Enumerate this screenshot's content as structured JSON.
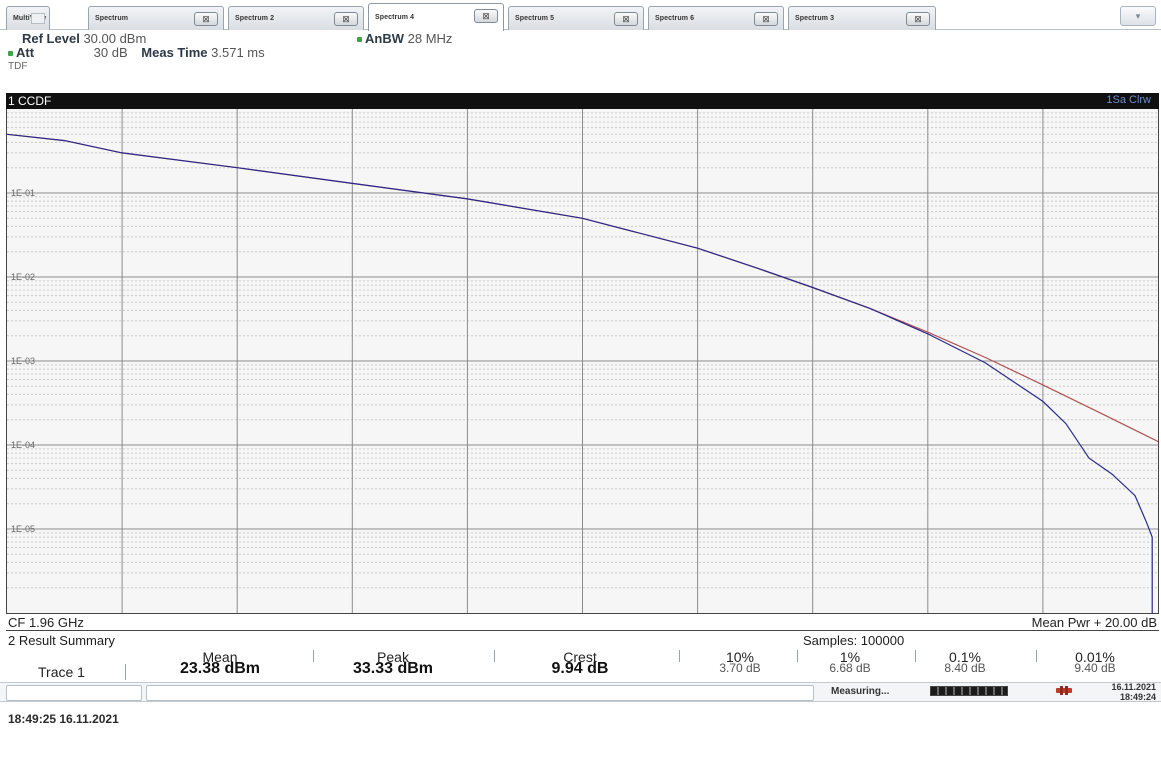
{
  "tabs": [
    {
      "label": "MultiView",
      "has_close": false,
      "active": false
    },
    {
      "label": "Spectrum",
      "has_close": true,
      "active": false
    },
    {
      "label": "Spectrum 2",
      "has_close": true,
      "active": false
    },
    {
      "label": "Spectrum 4",
      "has_close": true,
      "active": true
    },
    {
      "label": "Spectrum 5",
      "has_close": true,
      "active": false
    },
    {
      "label": "Spectrum 6",
      "has_close": true,
      "active": false
    },
    {
      "label": "Spectrum 3",
      "has_close": true,
      "active": false
    }
  ],
  "tab_close_glyph": "⊠",
  "settings": {
    "ref_level_key": "Ref Level",
    "ref_level_value": "30.00 dBm",
    "att_key": "Att",
    "att_value": "30 dB",
    "meas_time_key": "Meas Time",
    "meas_time_value": "3.571 ms",
    "tdf": "TDF",
    "anbw_key": "AnBW",
    "anbw_value": "28 MHz"
  },
  "diagram": {
    "title": "1 CCDF",
    "trace_badge": "1Sa Clrw",
    "cf": "CF 1.96 GHz",
    "mean_pwr": "Mean Pwr + 20.00 dB"
  },
  "chart_data": {
    "type": "line",
    "title": "1 CCDF",
    "y_scale": "log",
    "y_tick_labels": [
      "1E-01",
      "1E-02",
      "1E-03",
      "1E-04",
      "1E-05"
    ],
    "ylim": [
      1e-06,
      1
    ],
    "x_divisions": 10,
    "grid": true,
    "series": [
      {
        "name": "",
        "color": "#b05050",
        "x": [
          0.0,
          0.5,
          1.0,
          2.0,
          3.0,
          4.0,
          5.0,
          6.0,
          6.5,
          7.0,
          7.5,
          8.0,
          8.5,
          9.0,
          9.5,
          10.0,
          10.5,
          11.0,
          11.5,
          12.0
        ],
        "y": [
          0.5,
          0.42,
          0.3,
          0.2,
          0.13,
          0.085,
          0.05,
          0.022,
          0.013,
          0.0075,
          0.0042,
          0.0022,
          0.0011,
          0.00052,
          0.00024,
          0.00011,
          4.5e-05,
          1.8e-05,
          6.5e-06,
          1.9e-06
        ]
      },
      {
        "name": "",
        "color": "#2a2a8a",
        "x": [
          0.0,
          0.5,
          1.0,
          2.0,
          3.0,
          4.0,
          5.0,
          6.0,
          6.5,
          7.0,
          7.5,
          8.0,
          8.5,
          9.0,
          9.2,
          9.4,
          9.6,
          9.8,
          9.9,
          9.95,
          9.95
        ],
        "y": [
          0.5,
          0.42,
          0.3,
          0.2,
          0.13,
          0.085,
          0.05,
          0.022,
          0.013,
          0.0075,
          0.0042,
          0.0021,
          0.00095,
          0.00033,
          0.00018,
          7e-05,
          4.5e-05,
          2.5e-05,
          1.2e-05,
          8e-06,
          1e-06
        ]
      }
    ]
  },
  "summary": {
    "title": "2 Result Summary",
    "samples": "Samples: 100000",
    "trace_label": "Trace 1",
    "columns": [
      {
        "head": "Mean",
        "value": "23.38 dBm",
        "style": "bold"
      },
      {
        "head": "Peak",
        "value": "33.33 dBm",
        "style": "bold"
      },
      {
        "head": "Crest",
        "value": "9.94 dB",
        "style": "bold"
      },
      {
        "head": "10%",
        "value": "3.70 dB",
        "style": "small"
      },
      {
        "head": "1%",
        "value": "6.68 dB",
        "style": "small"
      },
      {
        "head": "0.1%",
        "value": "8.40 dB",
        "style": "small"
      },
      {
        "head": "0.01%",
        "value": "9.40 dB",
        "style": "small"
      }
    ]
  },
  "statusbar": {
    "measuring": "Measuring...",
    "progress": 1.0,
    "date": "16.11.2021",
    "time": "18:49:24"
  },
  "caption": "18:49:25 16.11.2021"
}
